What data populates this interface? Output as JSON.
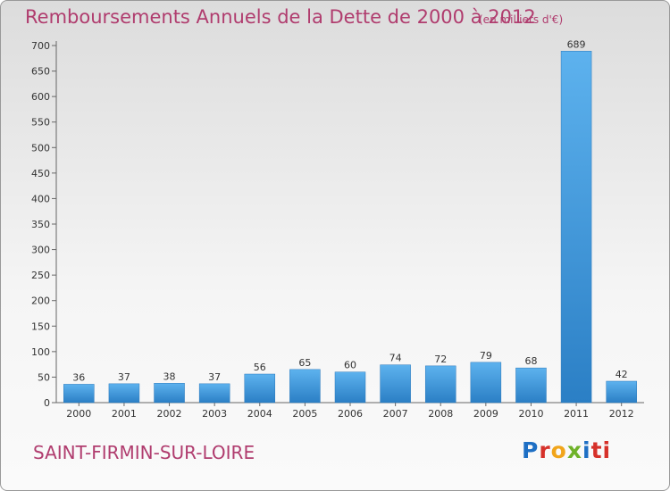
{
  "header": {
    "title": "Remboursements Annuels de la Dette de 2000 à 2012",
    "unit": "(en milliers d'€)"
  },
  "footer": {
    "commune": "SAINT-FIRMIN-SUR-LOIRE",
    "logo_letters": [
      "P",
      "r",
      "o",
      "x",
      "i",
      "ti"
    ]
  },
  "colors": {
    "title": "#b03c6e",
    "bar_light": "#5db2ee",
    "bar_dark": "#2b7fc5"
  },
  "chart_data": {
    "type": "bar",
    "title": "Remboursements Annuels de la Dette de 2000 à 2012",
    "categories": [
      "2000",
      "2001",
      "2002",
      "2003",
      "2004",
      "2005",
      "2006",
      "2007",
      "2008",
      "2009",
      "2010",
      "2011",
      "2012"
    ],
    "values": [
      36,
      37,
      38,
      37,
      56,
      65,
      60,
      74,
      72,
      79,
      68,
      689,
      42
    ],
    "ylim": [
      0,
      700
    ],
    "yticks": [
      0,
      50,
      100,
      150,
      200,
      250,
      300,
      350,
      400,
      450,
      500,
      550,
      600,
      650,
      700
    ],
    "grid": false,
    "legend": "none"
  }
}
